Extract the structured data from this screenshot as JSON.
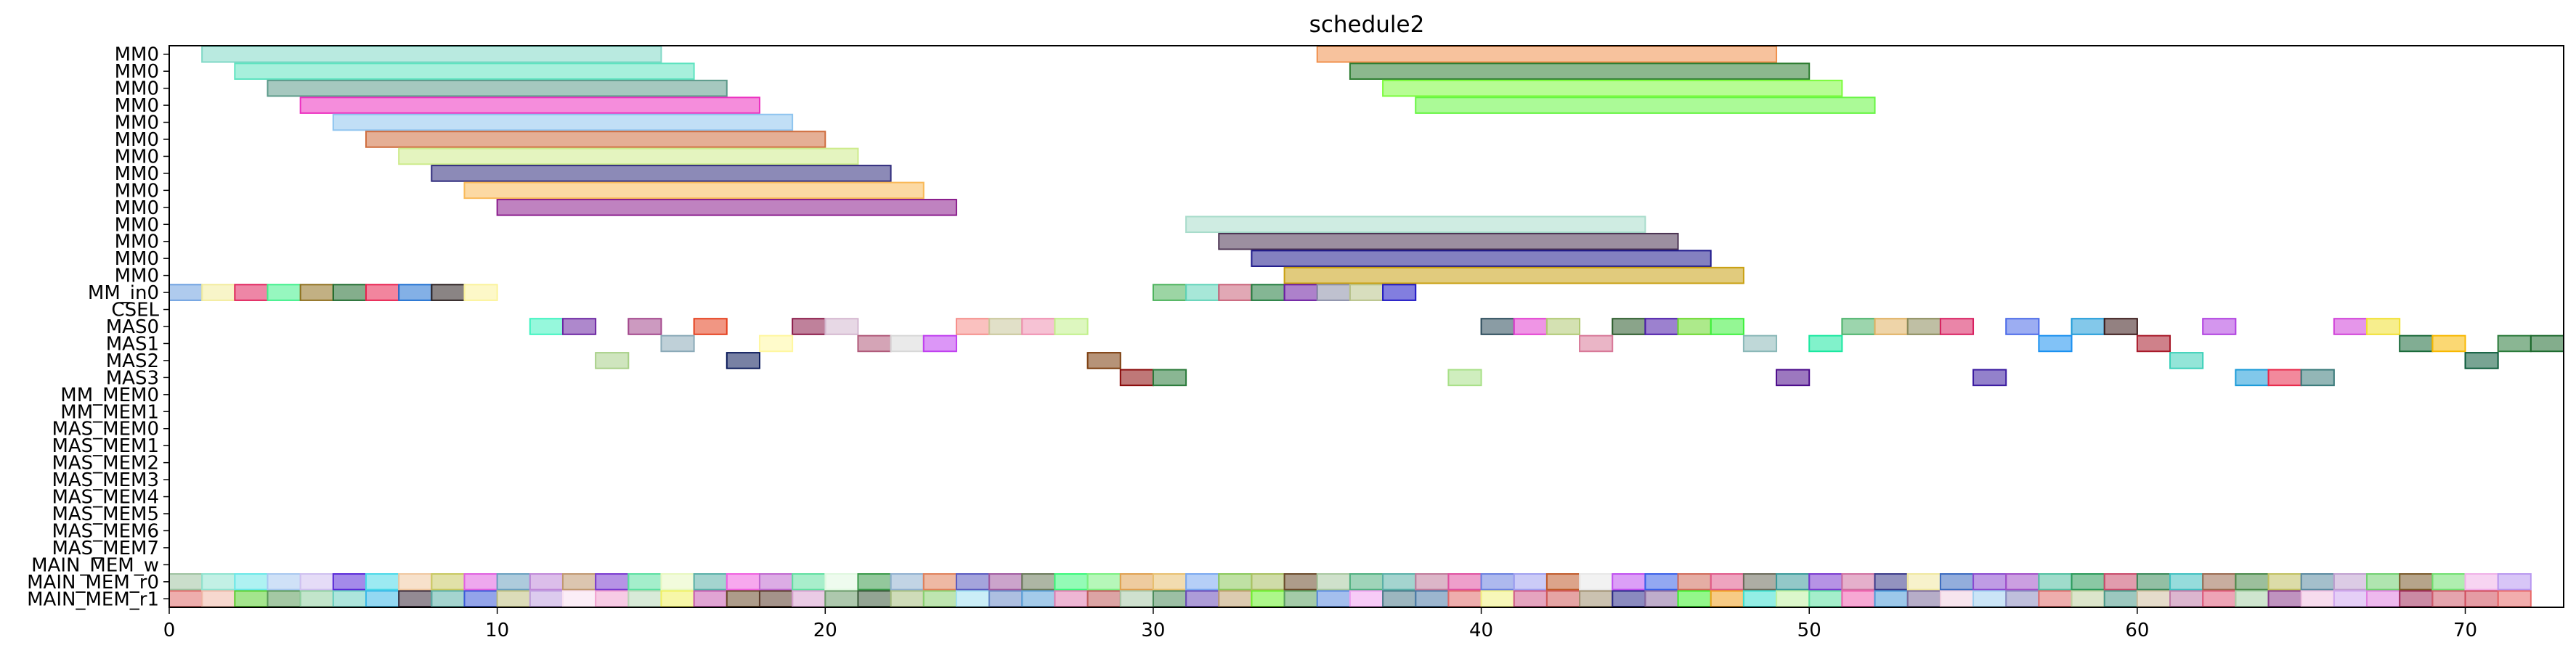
{
  "chart_data": {
    "type": "gantt",
    "title": "schedule2",
    "xlabel": "",
    "ylabel": "",
    "xlim": [
      0,
      73
    ],
    "x_ticks": [
      0,
      10,
      20,
      30,
      40,
      50,
      60,
      70
    ],
    "grid": false,
    "legend": "none",
    "rows": [
      "MM0",
      "MM0",
      "MM0",
      "MM0",
      "MM0",
      "MM0",
      "MM0",
      "MM0",
      "MM0",
      "MM0",
      "MM0",
      "MM0",
      "MM0",
      "MM0",
      "MM_in0",
      "CSEL",
      "MAS0",
      "MAS1",
      "MAS2",
      "MAS3",
      "MM_MEM0",
      "MM_MEM1",
      "MAS_MEM0",
      "MAS_MEM1",
      "MAS_MEM2",
      "MAS_MEM3",
      "MAS_MEM4",
      "MAS_MEM5",
      "MAS_MEM6",
      "MAS_MEM7",
      "MAIN_MEM_w",
      "MAIN_MEM_r0",
      "MAIN_MEM_r1"
    ],
    "tasks": [
      {
        "row": 0,
        "start": 1,
        "end": 15,
        "color": "#7fd8c6"
      },
      {
        "row": 0,
        "start": 35,
        "end": 49,
        "color": "#f0904d"
      },
      {
        "row": 1,
        "start": 2,
        "end": 16,
        "color": "#5ee3c0"
      },
      {
        "row": 1,
        "start": 36,
        "end": 50,
        "color": "#2e7d32"
      },
      {
        "row": 2,
        "start": 3,
        "end": 17,
        "color": "#5c9a8a"
      },
      {
        "row": 2,
        "start": 37,
        "end": 51,
        "color": "#7cfc3c"
      },
      {
        "row": 3,
        "start": 4,
        "end": 18,
        "color": "#ec2fc0"
      },
      {
        "row": 3,
        "start": 38,
        "end": 52,
        "color": "#66f542"
      },
      {
        "row": 4,
        "start": 5,
        "end": 19,
        "color": "#8ec4ef"
      },
      {
        "row": 5,
        "start": 6,
        "end": 20,
        "color": "#cf6d3e"
      },
      {
        "row": 6,
        "start": 7,
        "end": 21,
        "color": "#cdeb8b"
      },
      {
        "row": 7,
        "start": 8,
        "end": 22,
        "color": "#2e2a7c"
      },
      {
        "row": 8,
        "start": 9,
        "end": 23,
        "color": "#f9b958"
      },
      {
        "row": 9,
        "start": 10,
        "end": 24,
        "color": "#8a1c8c"
      },
      {
        "row": 10,
        "start": 31,
        "end": 45,
        "color": "#a8dccb"
      },
      {
        "row": 11,
        "start": 32,
        "end": 46,
        "color": "#4b3352"
      },
      {
        "row": 12,
        "start": 33,
        "end": 47,
        "color": "#1f1a8c"
      },
      {
        "row": 13,
        "start": 34,
        "end": 48,
        "color": "#c9a012"
      },
      {
        "row": 14,
        "start": 0,
        "end": 1,
        "color": "#6ea1e0"
      },
      {
        "row": 14,
        "start": 1,
        "end": 2,
        "color": "#f3ec9c"
      },
      {
        "row": 14,
        "start": 2,
        "end": 3,
        "color": "#e0235c"
      },
      {
        "row": 14,
        "start": 3,
        "end": 4,
        "color": "#3ff08a"
      },
      {
        "row": 14,
        "start": 4,
        "end": 5,
        "color": "#8f6f1e"
      },
      {
        "row": 14,
        "start": 5,
        "end": 6,
        "color": "#1f6b2e"
      },
      {
        "row": 14,
        "start": 6,
        "end": 7,
        "color": "#e8204e"
      },
      {
        "row": 14,
        "start": 7,
        "end": 8,
        "color": "#1e6fd1"
      },
      {
        "row": 14,
        "start": 8,
        "end": 9,
        "color": "#2a1f1f"
      },
      {
        "row": 14,
        "start": 9,
        "end": 10,
        "color": "#fbf39a"
      },
      {
        "row": 14,
        "start": 30,
        "end": 31,
        "color": "#4ab25a"
      },
      {
        "row": 14,
        "start": 31,
        "end": 32,
        "color": "#5fd3b8"
      },
      {
        "row": 14,
        "start": 32,
        "end": 33,
        "color": "#c86078"
      },
      {
        "row": 14,
        "start": 33,
        "end": 34,
        "color": "#1f7a3c"
      },
      {
        "row": 14,
        "start": 34,
        "end": 35,
        "color": "#6a1aa0"
      },
      {
        "row": 14,
        "start": 35,
        "end": 36,
        "color": "#8a8ea8"
      },
      {
        "row": 14,
        "start": 36,
        "end": 37,
        "color": "#b8c288"
      },
      {
        "row": 14,
        "start": 37,
        "end": 38,
        "color": "#1c14c4"
      },
      {
        "row": 16,
        "start": 11,
        "end": 12,
        "color": "#3ff3c0"
      },
      {
        "row": 16,
        "start": 12,
        "end": 13,
        "color": "#6c26a2"
      },
      {
        "row": 16,
        "start": 14,
        "end": 15,
        "color": "#a3478c"
      },
      {
        "row": 16,
        "start": 16,
        "end": 17,
        "color": "#e5401e"
      },
      {
        "row": 16,
        "start": 19,
        "end": 20,
        "color": "#8a1a48"
      },
      {
        "row": 16,
        "start": 20,
        "end": 21,
        "color": "#d4b8d0"
      },
      {
        "row": 16,
        "start": 24,
        "end": 25,
        "color": "#f58e8a"
      },
      {
        "row": 16,
        "start": 25,
        "end": 26,
        "color": "#c9c79a"
      },
      {
        "row": 16,
        "start": 26,
        "end": 27,
        "color": "#ef8fb0"
      },
      {
        "row": 16,
        "start": 27,
        "end": 28,
        "color": "#c1f08a"
      },
      {
        "row": 16,
        "start": 40,
        "end": 41,
        "color": "#2a4a5a"
      },
      {
        "row": 16,
        "start": 41,
        "end": 42,
        "color": "#e23ed0"
      },
      {
        "row": 16,
        "start": 42,
        "end": 43,
        "color": "#b0c872"
      },
      {
        "row": 16,
        "start": 44,
        "end": 45,
        "color": "#2a5a2a"
      },
      {
        "row": 16,
        "start": 45,
        "end": 46,
        "color": "#4a1aa8"
      },
      {
        "row": 16,
        "start": 46,
        "end": 47,
        "color": "#6ad82c"
      },
      {
        "row": 16,
        "start": 47,
        "end": 48,
        "color": "#3cf03c"
      },
      {
        "row": 16,
        "start": 51,
        "end": 52,
        "color": "#4ab26a"
      },
      {
        "row": 16,
        "start": 52,
        "end": 53,
        "color": "#e0b060"
      },
      {
        "row": 16,
        "start": 53,
        "end": 54,
        "color": "#8a8a5a"
      },
      {
        "row": 16,
        "start": 54,
        "end": 55,
        "color": "#d82060"
      },
      {
        "row": 16,
        "start": 56,
        "end": 57,
        "color": "#4a6ae8"
      },
      {
        "row": 16,
        "start": 58,
        "end": 59,
        "color": "#1e9ad8"
      },
      {
        "row": 16,
        "start": 59,
        "end": 60,
        "color": "#3a1a1a"
      },
      {
        "row": 16,
        "start": 62,
        "end": 63,
        "color": "#b040e0"
      },
      {
        "row": 16,
        "start": 66,
        "end": 67,
        "color": "#d040d8"
      },
      {
        "row": 16,
        "start": 67,
        "end": 68,
        "color": "#f0e030"
      },
      {
        "row": 17,
        "start": 15,
        "end": 16,
        "color": "#8aaab8"
      },
      {
        "row": 17,
        "start": 18,
        "end": 19,
        "color": "#fff7a0"
      },
      {
        "row": 17,
        "start": 21,
        "end": 22,
        "color": "#b05a7a"
      },
      {
        "row": 17,
        "start": 22,
        "end": 23,
        "color": "#d8d8d8"
      },
      {
        "row": 17,
        "start": 23,
        "end": 24,
        "color": "#c040f0"
      },
      {
        "row": 17,
        "start": 43,
        "end": 44,
        "color": "#d87898"
      },
      {
        "row": 17,
        "start": 48,
        "end": 49,
        "color": "#8ab8b8"
      },
      {
        "row": 17,
        "start": 50,
        "end": 51,
        "color": "#1ae8a0"
      },
      {
        "row": 17,
        "start": 57,
        "end": 58,
        "color": "#1a90f0"
      },
      {
        "row": 17,
        "start": 60,
        "end": 61,
        "color": "#a81a2a"
      },
      {
        "row": 17,
        "start": 68,
        "end": 69,
        "color": "#1a6a3a"
      },
      {
        "row": 17,
        "start": 69,
        "end": 70,
        "color": "#f8b800"
      },
      {
        "row": 17,
        "start": 71,
        "end": 72,
        "color": "#2a7a3a"
      },
      {
        "row": 17,
        "start": 72,
        "end": 73,
        "color": "#1e6a2e"
      },
      {
        "row": 18,
        "start": 13,
        "end": 14,
        "color": "#a8d088"
      },
      {
        "row": 18,
        "start": 17,
        "end": 18,
        "color": "#0a1a5a"
      },
      {
        "row": 18,
        "start": 28,
        "end": 29,
        "color": "#7a3a0a"
      },
      {
        "row": 18,
        "start": 61,
        "end": 62,
        "color": "#3ad0b8"
      },
      {
        "row": 18,
        "start": 70,
        "end": 71,
        "color": "#0a5a3a"
      },
      {
        "row": 19,
        "start": 29,
        "end": 30,
        "color": "#8a0a0a"
      },
      {
        "row": 19,
        "start": 30,
        "end": 31,
        "color": "#2a7a3a"
      },
      {
        "row": 19,
        "start": 39,
        "end": 40,
        "color": "#a8e088"
      },
      {
        "row": 19,
        "start": 49,
        "end": 50,
        "color": "#4a0a8a"
      },
      {
        "row": 19,
        "start": 55,
        "end": 56,
        "color": "#3a1aa0"
      },
      {
        "row": 19,
        "start": 63,
        "end": 64,
        "color": "#1a9ad8"
      },
      {
        "row": 19,
        "start": 64,
        "end": 65,
        "color": "#e8284a"
      },
      {
        "row": 19,
        "start": 65,
        "end": 66,
        "color": "#3a7a7a"
      }
    ],
    "mem_w_colors": [
      "#9ec2a0",
      "#8fe3d0",
      "#6be8e8",
      "#a8c8f0",
      "#cfc0f0",
      "#5a2ad8",
      "#4ad8e8",
      "#f0c8a0",
      "#c8c860",
      "#e060e0",
      "#6aa0c0",
      "#c088d8",
      "#c09870",
      "#7a3ad0",
      "#5ae0a0",
      "#e8f8c0",
      "#5ab0a8",
      "#f060e0",
      "#c068d0",
      "#60e0a0",
      "#e0f8e0",
      "#3a9a4a",
      "#90b0d0",
      "#e0805a",
      "#5a5ac0",
      "#a05aa0",
      "#6a7a5a",
      "#3af87a",
      "#7af080",
      "#e0a050",
      "#e8c070",
      "#7aa8f0",
      "#8ac85a",
      "#a8c060",
      "#6a4a2a",
      "#a8c8a0",
      "#50b080",
      "#5ab0a8",
      "#c07a9a",
      "#e050a0",
      "#6a80e0",
      "#a0a0f0",
      "#c05a2a",
      "#e8e8e8",
      "#c050f0",
      "#3a60e8",
      "#d06a5a",
      "#e05a8a",
      "#6a6a5a",
      "#3a9a9a",
      "#7a3ad0",
      "#d070a0",
      "#3a3a8a",
      "#f0e8a0",
      "#3a6ac0",
      "#8a4ad0",
      "#a050c8",
      "#50c0a0",
      "#2a9a5a",
      "#c84a6a",
      "#3a8a5a",
      "#40c0c0",
      "#9a6a50",
      "#4a8a4a",
      "#c0c060",
      "#5a8aa0",
      "#c0a0d0",
      "#70d070",
      "#7a5a2a",
      "#70e070",
      "#f0b0e8",
      "#b898f0"
    ],
    "mem_r0_colors": [
      "#e06a6a",
      "#f0b8a8",
      "#5ad030",
      "#5a9a5a",
      "#90d0a0",
      "#6ad0c0",
      "#3ab8e8",
      "#3a2a3a",
      "#5ab0a8",
      "#3a5ad8",
      "#c0c080",
      "#c0a0e0",
      "#f8e0f0",
      "#f0a0d0",
      "#b8d8b8",
      "#f0f060",
      "#c85ab0",
      "#6a4a2a",
      "#5a3a2a",
      "#d8a0d0",
      "#6a9a6a",
      "#3a5a3a",
      "#a8c080",
      "#88d070",
      "#a0e0f0",
      "#6a8ac8",
      "#5aa0d8",
      "#e07ab0",
      "#c05a5a",
      "#a8c8a8",
      "#4a8a5a",
      "#6a4ab8",
      "#c0a070",
      "#6af02a",
      "#5aa060",
      "#5a8ae0",
      "#f0a0f0",
      "#4a7a8a",
      "#4a7aa8",
      "#e06a6a",
      "#f0f080",
      "#d05a8a",
      "#d05a5a",
      "#a09070",
      "#2a2a8a",
      "#8a6aa0",
      "#3af02a",
      "#f0a020",
      "#3ae0d0",
      "#c0f0a0",
      "#5ae0a0",
      "#f060b0",
      "#4a9ad8",
      "#7a6a9a",
      "#f0d0e0",
      "#a0d0f0",
      "#8a8ac0",
      "#e06a6a",
      "#c0d0a0",
      "#4a9a8a",
      "#d0c0a0",
      "#c07aa8",
      "#e05a7a",
      "#a8d0a8",
      "#8a3a8a",
      "#f0c0e0",
      "#d0a8f0",
      "#e080e0",
      "#a02a5a",
      "#d05a6a",
      "#d04a5a",
      "#e86a6a"
    ]
  }
}
